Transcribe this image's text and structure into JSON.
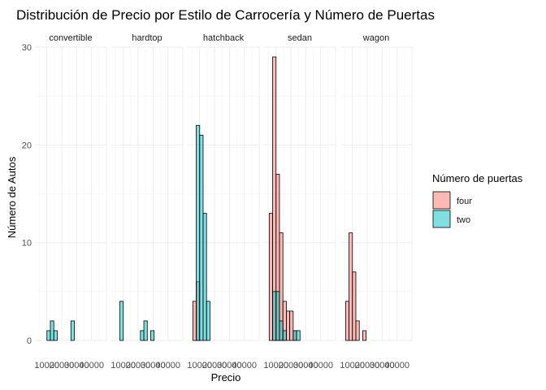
{
  "chart_data": {
    "type": "bar",
    "subtype": "faceted-histogram",
    "title": "Distribución de Precio por Estilo de Carrocería y Número de Puertas",
    "xlabel": "Precio",
    "ylabel": "Número de Autos",
    "ylim": [
      0,
      30
    ],
    "y_ticks": [
      0,
      10,
      20,
      30
    ],
    "x_tick_labels": [
      "10000",
      "20000",
      "30000",
      "40000"
    ],
    "xlim": [
      2000,
      50000
    ],
    "bin_width": 2300,
    "bin_start": 5450,
    "bar_position": "identity",
    "grid": true,
    "legend": {
      "title": "Número de puertas",
      "position": "right",
      "entries": [
        {
          "name": "four",
          "color": "#F8766D"
        },
        {
          "name": "two",
          "color": "#00BFC4"
        }
      ]
    },
    "fill_alpha": 0.5,
    "facets": [
      {
        "label": "convertible",
        "series": [
          {
            "name": "four",
            "values": [
              0,
              0,
              0,
              0,
              0,
              0,
              0,
              0,
              0,
              0,
              0,
              0,
              0,
              0,
              0,
              0,
              0,
              0,
              0,
              0
            ]
          },
          {
            "name": "two",
            "values": [
              0,
              0,
              1,
              2,
              1,
              0,
              0,
              0,
              0,
              2,
              0,
              0,
              0,
              0,
              0,
              0,
              0,
              0,
              0,
              0
            ]
          }
        ]
      },
      {
        "label": "hardtop",
        "series": [
          {
            "name": "four",
            "values": [
              0,
              0,
              0,
              0,
              0,
              0,
              0,
              0,
              0,
              0,
              0,
              0,
              0,
              0,
              0,
              0,
              0,
              0,
              0,
              0
            ]
          },
          {
            "name": "two",
            "values": [
              0,
              4,
              0,
              0,
              0,
              0,
              0,
              1,
              2,
              0,
              1,
              0,
              0,
              0,
              0,
              0,
              0,
              0,
              0,
              0
            ]
          }
        ]
      },
      {
        "label": "hatchback",
        "series": [
          {
            "name": "four",
            "values": [
              4,
              6,
              0,
              0,
              0,
              0,
              0,
              0,
              0,
              0,
              0,
              0,
              0,
              0,
              0,
              0,
              0,
              0,
              0,
              0
            ]
          },
          {
            "name": "two",
            "values": [
              0,
              22,
              21,
              13,
              4,
              0,
              0,
              0,
              0,
              0,
              0,
              0,
              0,
              0,
              0,
              0,
              0,
              0,
              0,
              0
            ]
          }
        ]
      },
      {
        "label": "sedan",
        "series": [
          {
            "name": "four",
            "values": [
              13,
              29,
              17,
              11,
              4,
              3,
              3,
              1,
              0,
              0,
              0,
              0,
              0,
              0,
              0,
              0,
              0,
              0,
              0,
              0
            ]
          },
          {
            "name": "two",
            "values": [
              0,
              5,
              5,
              2,
              1,
              0,
              0,
              1,
              1,
              0,
              0,
              0,
              0,
              0,
              0,
              0,
              0,
              0,
              0,
              0
            ]
          }
        ]
      },
      {
        "label": "wagon",
        "series": [
          {
            "name": "four",
            "values": [
              4,
              11,
              7,
              2,
              0,
              1,
              0,
              0,
              0,
              0,
              0,
              0,
              0,
              0,
              0,
              0,
              0,
              0,
              0,
              0
            ]
          },
          {
            "name": "two",
            "values": [
              0,
              0,
              0,
              0,
              0,
              0,
              0,
              0,
              0,
              0,
              0,
              0,
              0,
              0,
              0,
              0,
              0,
              0,
              0,
              0
            ]
          }
        ]
      }
    ]
  }
}
